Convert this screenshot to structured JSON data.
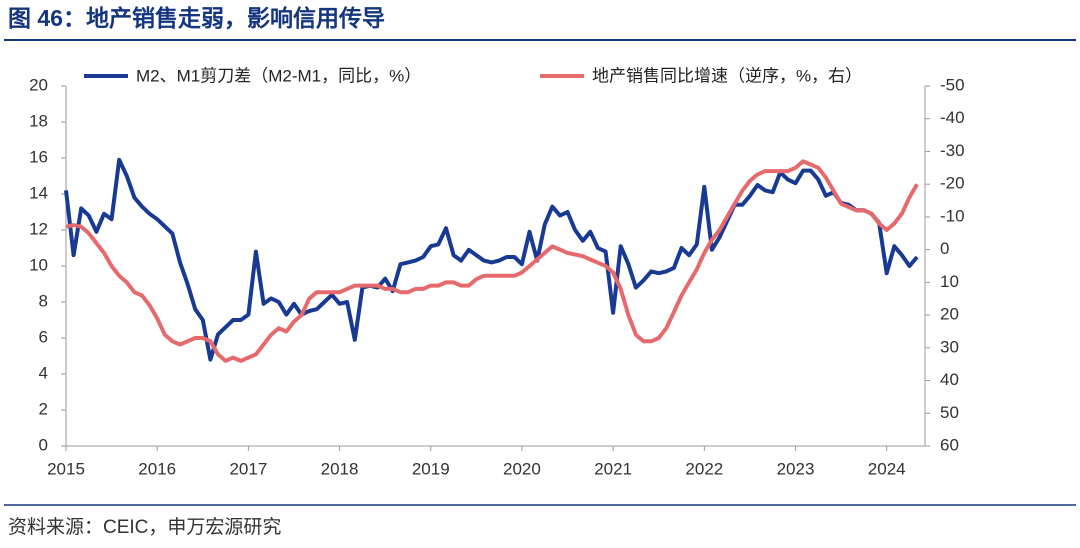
{
  "chart_data": {
    "type": "line",
    "title": "图 46：地产销售走弱，影响信用传导",
    "source": "资料来源：CEIC，申万宏源研究",
    "x": [
      2015,
      2015.083,
      2015.167,
      2015.25,
      2015.333,
      2015.417,
      2015.5,
      2015.583,
      2015.667,
      2015.75,
      2015.833,
      2015.917,
      2016,
      2016.083,
      2016.167,
      2016.25,
      2016.333,
      2016.417,
      2016.5,
      2016.583,
      2016.667,
      2016.75,
      2016.833,
      2016.917,
      2017,
      2017.083,
      2017.167,
      2017.25,
      2017.333,
      2017.417,
      2017.5,
      2017.583,
      2017.667,
      2017.75,
      2017.833,
      2017.917,
      2018,
      2018.083,
      2018.167,
      2018.25,
      2018.333,
      2018.417,
      2018.5,
      2018.583,
      2018.667,
      2018.75,
      2018.833,
      2018.917,
      2019,
      2019.083,
      2019.167,
      2019.25,
      2019.333,
      2019.417,
      2019.5,
      2019.583,
      2019.667,
      2019.75,
      2019.833,
      2019.917,
      2020,
      2020.083,
      2020.167,
      2020.25,
      2020.333,
      2020.417,
      2020.5,
      2020.583,
      2020.667,
      2020.75,
      2020.833,
      2020.917,
      2021,
      2021.083,
      2021.167,
      2021.25,
      2021.333,
      2021.417,
      2021.5,
      2021.583,
      2021.667,
      2021.75,
      2021.833,
      2021.917,
      2022,
      2022.083,
      2022.167,
      2022.25,
      2022.333,
      2022.417,
      2022.5,
      2022.583,
      2022.667,
      2022.75,
      2022.833,
      2022.917,
      2023,
      2023.083,
      2023.167,
      2023.25,
      2023.333,
      2023.417,
      2023.5,
      2023.583,
      2023.667,
      2023.75,
      2023.833,
      2023.917,
      2024,
      2024.083,
      2024.167,
      2024.25,
      2024.333
    ],
    "series": [
      {
        "name": "M2、M1剪刀差（M2-M1，同比，%）",
        "color": "#183a94",
        "values": [
          14.2,
          10.6,
          13.2,
          12.8,
          11.9,
          12.9,
          12.6,
          15.9,
          15.0,
          13.8,
          13.3,
          12.9,
          12.6,
          12.2,
          11.8,
          10.2,
          9.0,
          7.6,
          7.0,
          4.8,
          6.2,
          6.6,
          7.0,
          7.0,
          7.3,
          10.8,
          7.9,
          8.2,
          8.0,
          7.3,
          7.9,
          7.3,
          7.5,
          7.6,
          8.0,
          8.4,
          7.9,
          8.0,
          5.9,
          8.8,
          8.9,
          8.8,
          9.3,
          8.6,
          10.1,
          10.2,
          10.3,
          10.5,
          11.1,
          11.2,
          12.1,
          10.6,
          10.3,
          10.9,
          10.6,
          10.3,
          10.2,
          10.3,
          10.5,
          10.5,
          10.1,
          11.9,
          10.3,
          12.3,
          13.3,
          12.8,
          13.0,
          12.0,
          11.4,
          11.9,
          11.0,
          10.8,
          7.4,
          11.1,
          10.1,
          8.8,
          9.2,
          9.7,
          9.6,
          9.7,
          9.9,
          11.0,
          10.6,
          11.2,
          14.4,
          10.9,
          11.6,
          12.5,
          13.4,
          13.4,
          13.9,
          14.5,
          14.2,
          14.1,
          15.2,
          14.8,
          14.6,
          15.3,
          15.3,
          14.8,
          13.9,
          14.1,
          13.5,
          13.4,
          13.1,
          13.1,
          12.9,
          12.4,
          9.6,
          11.1,
          10.6,
          10.0,
          10.5
        ]
      },
      {
        "name": "地产销售同比增速（逆序，%，右）",
        "color": "#e66a6c",
        "axis": "y2",
        "values": [
          -7,
          -7.5,
          -7,
          -5,
          -2,
          1,
          5,
          8,
          10,
          13,
          14,
          17,
          21,
          26,
          28,
          29,
          28,
          27,
          27,
          28,
          32,
          34,
          33,
          34,
          33,
          32,
          29,
          26,
          24,
          25,
          22,
          20,
          15,
          13,
          13,
          13,
          13,
          12,
          11,
          11,
          11,
          11,
          12,
          12,
          13,
          13,
          12,
          12,
          11,
          11,
          10,
          10,
          11,
          11,
          9,
          8,
          8,
          8,
          8,
          8,
          7,
          5,
          3,
          1,
          -1,
          0,
          1,
          1.5,
          2,
          3,
          4,
          5,
          7,
          12,
          20,
          26,
          28,
          28,
          27,
          24,
          19,
          14,
          10,
          6,
          1,
          -3,
          -6,
          -10,
          -14,
          -18,
          -21,
          -23,
          -24,
          -24,
          -24,
          -24,
          -25,
          -27,
          -26,
          -25,
          -22,
          -18,
          -14,
          -13,
          -12,
          -12,
          -11,
          -8,
          -6,
          -8,
          -11,
          -16,
          -20
        ]
      }
    ],
    "xlim": [
      2015,
      2024.42
    ],
    "xticks": [
      2015,
      2016,
      2017,
      2018,
      2019,
      2020,
      2021,
      2022,
      2023,
      2024
    ],
    "ylim": [
      0,
      20
    ],
    "yticks": [
      0,
      2,
      4,
      6,
      8,
      10,
      12,
      14,
      16,
      18,
      20
    ],
    "y2lim": [
      60,
      -50
    ],
    "y2ticks": [
      -50,
      -40,
      -30,
      -20,
      -10,
      0,
      10,
      20,
      30,
      40,
      50,
      60
    ],
    "grid": false
  }
}
